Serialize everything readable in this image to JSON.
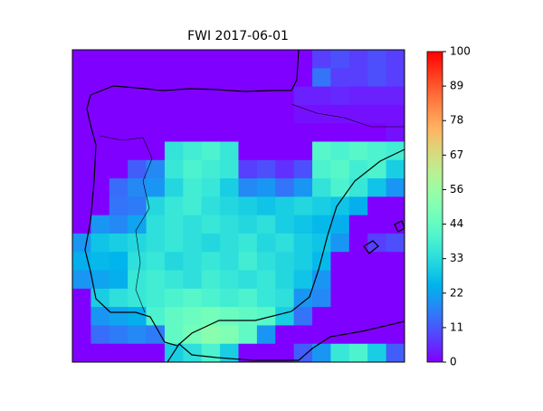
{
  "chart_data": {
    "type": "heatmap",
    "title": "FWI 2017-06-01",
    "colormap": "rainbow",
    "grid": [
      [
        0,
        0,
        0,
        0,
        0,
        0,
        0,
        0,
        0,
        0,
        0,
        0,
        0,
        8,
        10,
        8,
        10,
        8
      ],
      [
        0,
        0,
        0,
        0,
        0,
        0,
        0,
        0,
        0,
        0,
        0,
        0,
        0,
        15,
        8,
        8,
        10,
        8
      ],
      [
        0,
        0,
        0,
        0,
        0,
        0,
        0,
        0,
        0,
        0,
        0,
        0,
        4,
        4,
        5,
        4,
        4,
        4
      ],
      [
        0,
        0,
        0,
        0,
        0,
        0,
        0,
        0,
        0,
        0,
        0,
        0,
        2,
        2,
        2,
        2,
        2,
        2
      ],
      [
        0,
        0,
        0,
        0,
        0,
        0,
        0,
        0,
        0,
        0,
        0,
        0,
        0,
        0,
        0,
        0,
        0,
        2
      ],
      [
        0,
        0,
        0,
        0,
        0,
        35,
        38,
        40,
        36,
        0,
        0,
        0,
        0,
        42,
        40,
        42,
        40,
        38
      ],
      [
        0,
        0,
        0,
        12,
        18,
        36,
        40,
        38,
        36,
        8,
        10,
        6,
        10,
        40,
        42,
        38,
        40,
        30
      ],
      [
        0,
        0,
        14,
        18,
        20,
        32,
        38,
        36,
        30,
        18,
        20,
        15,
        20,
        35,
        40,
        36,
        28,
        20
      ],
      [
        0,
        0,
        15,
        16,
        32,
        36,
        38,
        34,
        32,
        30,
        28,
        30,
        32,
        30,
        28,
        24,
        0,
        0
      ],
      [
        0,
        20,
        18,
        22,
        34,
        36,
        34,
        36,
        34,
        32,
        34,
        30,
        28,
        26,
        24,
        0,
        0,
        0
      ],
      [
        20,
        28,
        30,
        32,
        34,
        36,
        34,
        32,
        34,
        36,
        32,
        34,
        30,
        28,
        20,
        0,
        8,
        10
      ],
      [
        24,
        26,
        25,
        34,
        36,
        32,
        34,
        36,
        34,
        38,
        34,
        32,
        30,
        26,
        0,
        0,
        0,
        0
      ],
      [
        20,
        22,
        24,
        36,
        38,
        36,
        34,
        38,
        36,
        34,
        36,
        32,
        28,
        20,
        0,
        0,
        0,
        0
      ],
      [
        0,
        30,
        34,
        36,
        38,
        40,
        42,
        40,
        38,
        40,
        36,
        34,
        20,
        18,
        0,
        0,
        0,
        0
      ],
      [
        0,
        20,
        22,
        24,
        40,
        44,
        46,
        48,
        46,
        44,
        42,
        30,
        15,
        0,
        0,
        0,
        0,
        0
      ],
      [
        0,
        14,
        16,
        18,
        16,
        44,
        48,
        52,
        50,
        44,
        20,
        0,
        0,
        0,
        0,
        0,
        0,
        0
      ],
      [
        0,
        0,
        0,
        0,
        0,
        30,
        34,
        40,
        30,
        0,
        0,
        0,
        12,
        20,
        36,
        40,
        30,
        12
      ]
    ],
    "clim": [
      0,
      100
    ],
    "cticks": [
      0,
      {
        "value": 11.11,
        "label": "11"
      },
      {
        "value": 22.22,
        "label": "22"
      },
      {
        "value": 33.33,
        "label": "33"
      },
      {
        "value": 44.44,
        "label": "44"
      },
      {
        "value": 55.56,
        "label": "56"
      },
      {
        "value": 66.67,
        "label": "67"
      },
      {
        "value": 77.78,
        "label": "78"
      },
      {
        "value": 88.89,
        "label": "89"
      },
      100
    ]
  }
}
